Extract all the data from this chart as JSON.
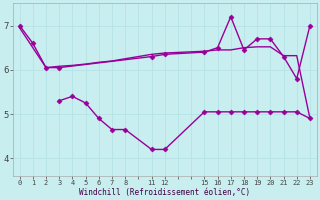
{
  "xlabel": "Windchill (Refroidissement éolien,°C)",
  "bg_color": "#c8eef0",
  "line_color": "#990099",
  "grid_color": "#b8e4e8",
  "xtick_labels": [
    "0",
    "1",
    "2",
    "3",
    "4",
    "5",
    "6",
    "7",
    "8",
    "",
    "11",
    "12",
    "",
    "",
    "15",
    "16",
    "17",
    "18",
    "19",
    "20",
    "21",
    "22",
    "23"
  ],
  "x_positions": [
    0,
    1,
    2,
    3,
    4,
    5,
    6,
    7,
    8,
    9,
    10,
    11,
    12,
    13,
    14,
    15,
    16,
    17,
    18,
    19,
    20,
    21,
    22
  ],
  "yticks": [
    4,
    5,
    6,
    7
  ],
  "ylim": [
    3.6,
    7.5
  ],
  "line1_xi": [
    0,
    1,
    2,
    3,
    10,
    11,
    14,
    15,
    16,
    17,
    18,
    19,
    20,
    21,
    22
  ],
  "line1_y": [
    7.0,
    6.6,
    6.05,
    6.05,
    6.3,
    6.35,
    6.4,
    6.5,
    7.2,
    6.45,
    6.7,
    6.7,
    6.3,
    5.8,
    7.0
  ],
  "line2_xi": [
    0,
    1,
    2,
    3,
    4,
    5,
    6,
    7,
    8,
    10,
    11,
    14,
    15,
    16,
    17,
    18,
    19,
    20,
    21,
    22
  ],
  "line2_y": [
    6.95,
    6.5,
    6.05,
    6.08,
    6.1,
    6.13,
    6.17,
    6.2,
    6.25,
    6.35,
    6.38,
    6.42,
    6.45,
    6.45,
    6.5,
    6.52,
    6.52,
    6.32,
    6.32,
    4.9
  ],
  "line3_xi": [
    3,
    4,
    5,
    6,
    7,
    8,
    10,
    11,
    14,
    15,
    16,
    17,
    18,
    19,
    20,
    21,
    22
  ],
  "line3_y": [
    5.3,
    5.4,
    5.25,
    4.9,
    4.65,
    4.65,
    4.2,
    4.2,
    5.05,
    5.05,
    5.05,
    5.05,
    5.05,
    5.05,
    5.05,
    5.05,
    4.9
  ],
  "line1_has_markers": true,
  "line3_has_markers": true,
  "marker": "D",
  "markersize": 2.5,
  "linewidth": 1.0
}
